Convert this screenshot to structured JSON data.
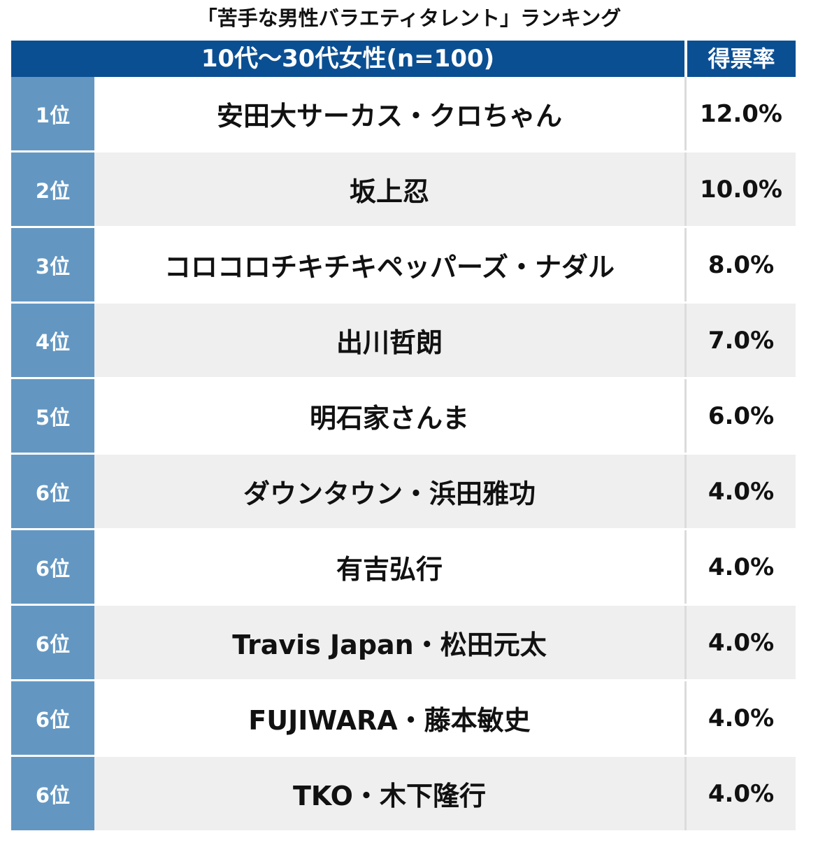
{
  "title": "「苦手な男性バラエティタレント」ランキング",
  "header": {
    "group_label": "10代〜30代女性(n=100)",
    "rate_label": "得票率"
  },
  "colors": {
    "header_bg": "#0b4f93",
    "rank_bg": "#6397c2",
    "row_alt_bg": "#efefef"
  },
  "chart_data": {
    "type": "table",
    "title": "「苦手な男性バラエティタレント」ランキング",
    "columns": [
      "10代〜30代女性(n=100)",
      "得票率"
    ],
    "rows": [
      {
        "rank": "1位",
        "name": "安田大サーカス・クロちゃん",
        "rate": "12.0%",
        "value": 12.0
      },
      {
        "rank": "2位",
        "name": "坂上忍",
        "rate": "10.0%",
        "value": 10.0
      },
      {
        "rank": "3位",
        "name": "コロコロチキチキペッパーズ・ナダル",
        "rate": "8.0%",
        "value": 8.0
      },
      {
        "rank": "4位",
        "name": "出川哲朗",
        "rate": "7.0%",
        "value": 7.0
      },
      {
        "rank": "5位",
        "name": "明石家さんま",
        "rate": "6.0%",
        "value": 6.0
      },
      {
        "rank": "6位",
        "name": "ダウンタウン・浜田雅功",
        "rate": "4.0%",
        "value": 4.0
      },
      {
        "rank": "6位",
        "name": "有吉弘行",
        "rate": "4.0%",
        "value": 4.0
      },
      {
        "rank": "6位",
        "name": "Travis Japan・松田元太",
        "rate": "4.0%",
        "value": 4.0
      },
      {
        "rank": "6位",
        "name": "FUJIWARA・藤本敏史",
        "rate": "4.0%",
        "value": 4.0
      },
      {
        "rank": "6位",
        "name": "TKO・木下隆行",
        "rate": "4.0%",
        "value": 4.0
      }
    ]
  }
}
